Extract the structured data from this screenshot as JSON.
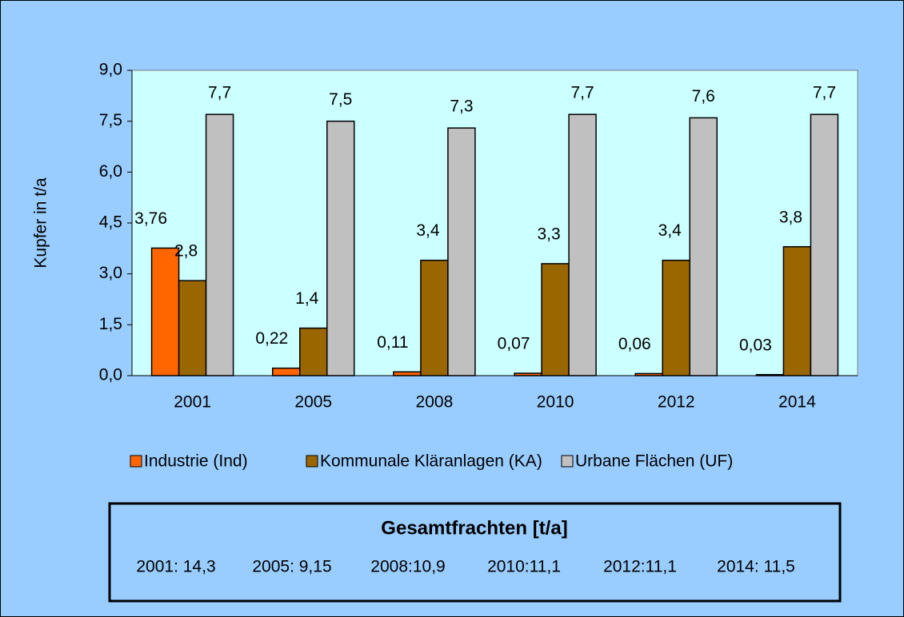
{
  "chart_data": {
    "type": "bar",
    "y_label": "Kupfer in t/a",
    "categories": [
      "2001",
      "2005",
      "2008",
      "2010",
      "2012",
      "2014"
    ],
    "series": [
      {
        "name": "Industrie (Ind)",
        "color": "#ff6600",
        "values": [
          3.76,
          0.22,
          0.11,
          0.07,
          0.06,
          0.03
        ],
        "value_labels": [
          "3,76",
          "0,22",
          "0,11",
          "0,07",
          "0,06",
          "0,03"
        ]
      },
      {
        "name": "Kommunale Kläranlagen (KA)",
        "color": "#996600",
        "values": [
          2.8,
          1.4,
          3.4,
          3.3,
          3.4,
          3.8
        ],
        "value_labels": [
          "2,8",
          "1,4",
          "3,4",
          "3,3",
          "3,4",
          "3,8"
        ]
      },
      {
        "name": "Urbane Flächen (UF)",
        "color": "#c0c0c0",
        "values": [
          7.7,
          7.5,
          7.3,
          7.7,
          7.6,
          7.7
        ],
        "value_labels": [
          "7,7",
          "7,5",
          "7,3",
          "7,7",
          "7,6",
          "7,7"
        ]
      }
    ],
    "ylim": [
      0,
      9
    ],
    "yticks": [
      {
        "value": 0,
        "label": "0,0"
      },
      {
        "value": 1.5,
        "label": "1,5"
      },
      {
        "value": 3,
        "label": "3,0"
      },
      {
        "value": 4.5,
        "label": "4,5"
      },
      {
        "value": 6,
        "label": "6,0"
      },
      {
        "value": 7.5,
        "label": "7,5"
      },
      {
        "value": 9,
        "label": "9,0"
      }
    ],
    "legend": "bottom",
    "box": {
      "title": "Gesamtfrachten [t/a]",
      "items": [
        "2001: 14,3",
        "2005: 9,15",
        "2008:10,9",
        "2010:11,1",
        "2012:11,1",
        "2014: 11,5"
      ]
    }
  }
}
